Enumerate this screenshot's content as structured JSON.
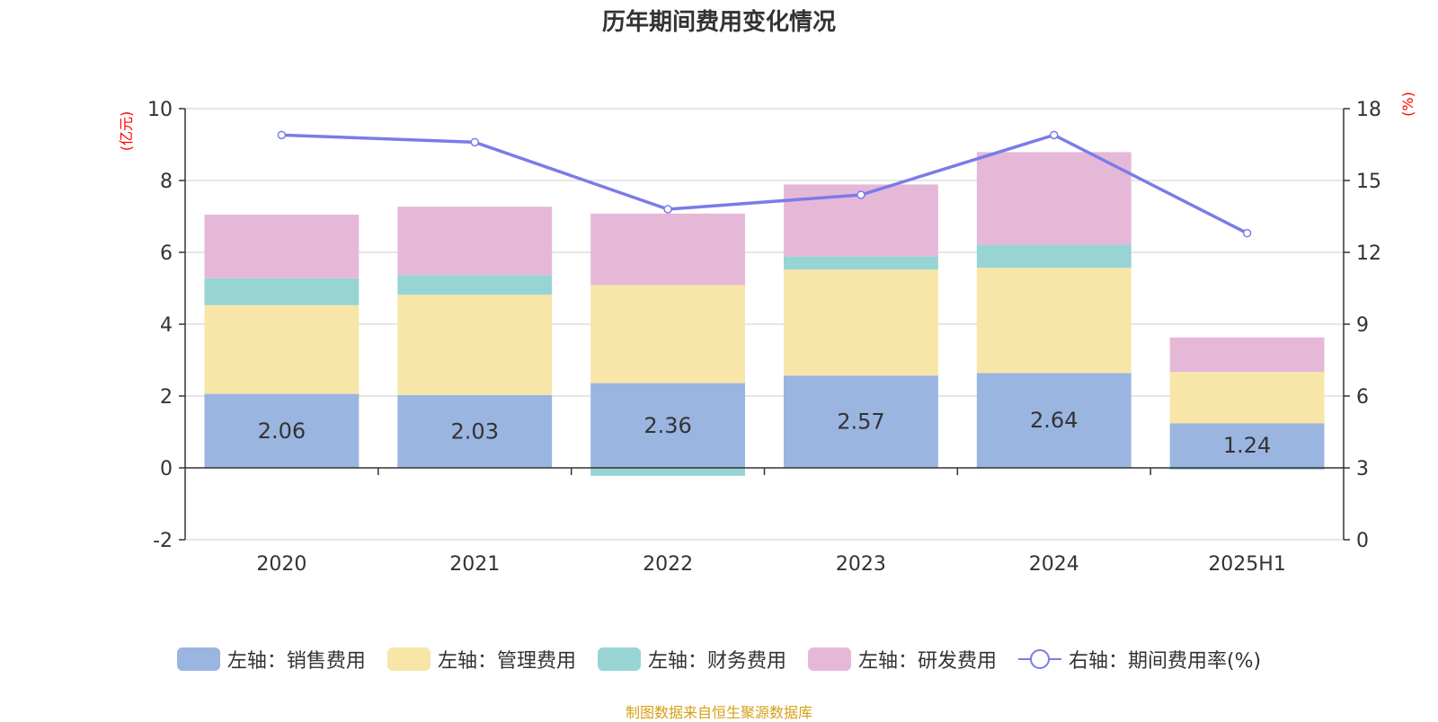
{
  "chart_data": {
    "type": "bar",
    "title": "历年期间费用变化情况",
    "left_axis_unit": "(亿元)",
    "right_axis_unit": "(%)",
    "categories": [
      "2020",
      "2021",
      "2022",
      "2023",
      "2024",
      "2025H1"
    ],
    "left_ylim": [
      -2,
      10
    ],
    "left_yticks": [
      "-2",
      "0",
      "2",
      "4",
      "6",
      "8",
      "10"
    ],
    "right_ylim": [
      0,
      18
    ],
    "right_yticks": [
      "0",
      "3",
      "6",
      "9",
      "12",
      "15",
      "18"
    ],
    "grid": true,
    "legend_position": "bottom",
    "series": [
      {
        "name": "左轴：销售费用",
        "kind": "bar",
        "axis": "left",
        "color": "#9bb5e1",
        "values": [
          2.06,
          2.03,
          2.36,
          2.57,
          2.64,
          1.24
        ],
        "labels": [
          "2.06",
          "2.03",
          "2.36",
          "2.57",
          "2.64",
          "1.24"
        ]
      },
      {
        "name": "左轴：管理费用",
        "kind": "bar",
        "axis": "left",
        "color": "#f7e6a8",
        "values": [
          2.47,
          2.79,
          2.73,
          2.95,
          2.93,
          1.43
        ]
      },
      {
        "name": "左轴：财务费用",
        "kind": "bar",
        "axis": "left",
        "color": "#98d4d4",
        "values": [
          0.75,
          0.55,
          -0.22,
          0.37,
          0.64,
          -0.05
        ]
      },
      {
        "name": "左轴：研发费用",
        "kind": "bar",
        "axis": "left",
        "color": "#e6b8d8",
        "values": [
          1.77,
          1.9,
          1.99,
          2.0,
          2.58,
          0.96
        ]
      },
      {
        "name": "右轴：期间费用率(%)",
        "kind": "line",
        "axis": "right",
        "color": "#7a7ce8",
        "values": [
          16.9,
          16.6,
          13.8,
          14.4,
          16.9,
          12.8
        ]
      }
    ]
  },
  "source_text": "制图数据来自恒生聚源数据库",
  "colors": {
    "axis_unit": "#ff0000",
    "source": "#d4a017",
    "grid": "#cccccc",
    "text": "#333333"
  }
}
